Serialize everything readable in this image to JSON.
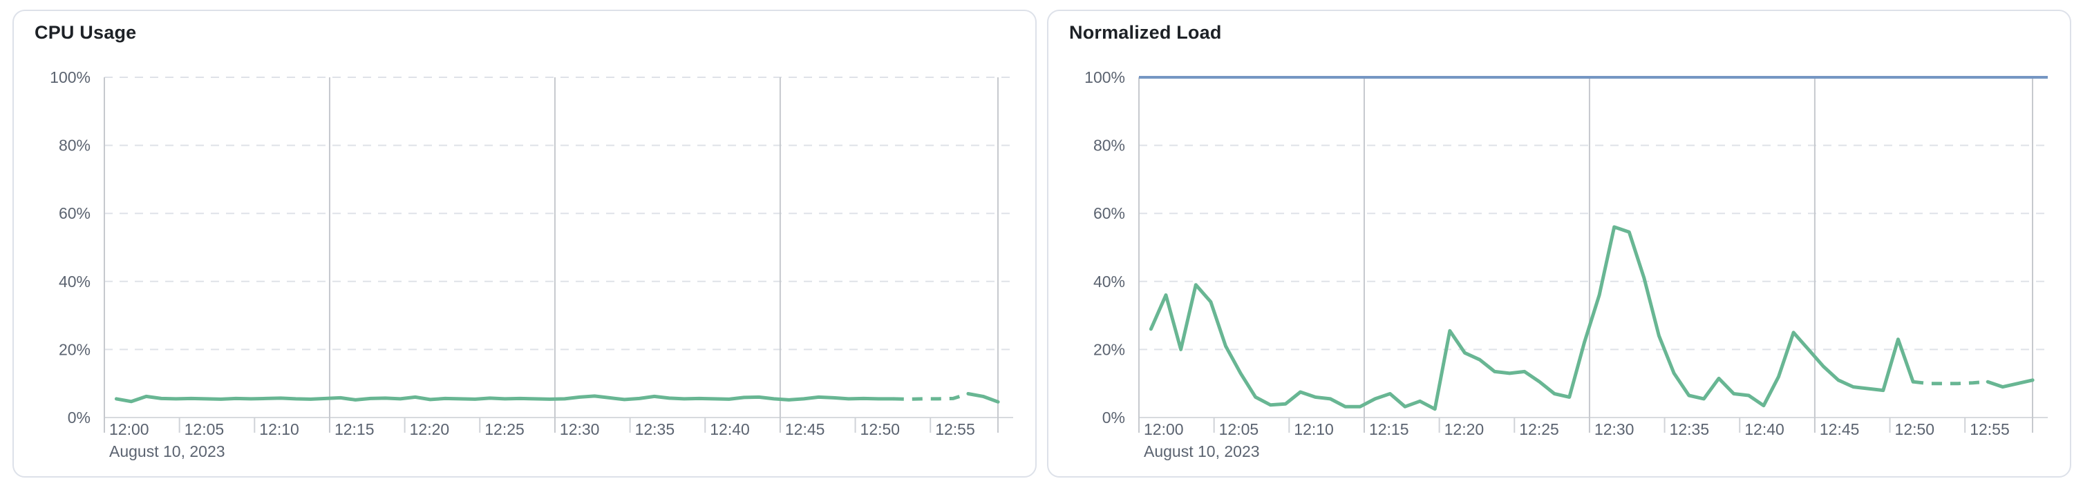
{
  "page": {
    "background": "#ffffff"
  },
  "chart_data": [
    {
      "type": "line",
      "title": "CPU Usage",
      "x_axis": {
        "date_label": "August 10, 2023",
        "start_time": "12:00",
        "tick_labels": [
          "12:00",
          "12:05",
          "12:10",
          "12:15",
          "12:20",
          "12:25",
          "12:30",
          "12:35",
          "12:40",
          "12:45",
          "12:50",
          "12:55"
        ],
        "tick_minutes": [
          0,
          5,
          10,
          15,
          20,
          25,
          30,
          35,
          40,
          45,
          50,
          55
        ],
        "major_gridline_minutes": [
          0,
          15,
          30,
          45,
          59.5
        ],
        "range_minutes": [
          0,
          59.5
        ]
      },
      "y_axis": {
        "tick_labels": [
          "0%",
          "20%",
          "40%",
          "60%",
          "80%",
          "100%"
        ],
        "tick_values": [
          0,
          20,
          40,
          60,
          80,
          100
        ],
        "ylim": [
          0,
          100
        ],
        "gridline_style": "dashed"
      },
      "series": [
        {
          "name": "cpu-usage",
          "color": "#68b693",
          "start_minute": 0.8,
          "minutes_per_point": 0.995,
          "dashed_point_range": [
            52,
            57
          ],
          "values": [
            5.5,
            4.7,
            6.2,
            5.6,
            5.5,
            5.6,
            5.5,
            5.4,
            5.6,
            5.5,
            5.6,
            5.7,
            5.5,
            5.4,
            5.6,
            5.8,
            5.2,
            5.6,
            5.7,
            5.5,
            6.0,
            5.3,
            5.6,
            5.5,
            5.4,
            5.7,
            5.5,
            5.6,
            5.5,
            5.4,
            5.5,
            6.0,
            6.3,
            5.8,
            5.3,
            5.6,
            6.2,
            5.7,
            5.5,
            5.6,
            5.5,
            5.4,
            5.9,
            6.0,
            5.5,
            5.2,
            5.5,
            6.0,
            5.8,
            5.5,
            5.6,
            5.5,
            5.5,
            5.4,
            5.5,
            5.5,
            5.6,
            7.0,
            6.2,
            4.6
          ]
        }
      ],
      "colors": {
        "line": "#68b693",
        "grid_major": "#c6c9ce",
        "grid_dashed": "#dfe2e8",
        "axis_line": "#d7dade",
        "tick": "#d0d3d8",
        "axis_text": "#5b6370",
        "title_text": "#1d2126"
      },
      "legend": false,
      "grid": {
        "horizontal": "dashed",
        "vertical_major_every_minutes": 15
      }
    },
    {
      "type": "line",
      "title": "Normalized Load",
      "x_axis": {
        "date_label": "August 10, 2023",
        "start_time": "12:00",
        "tick_labels": [
          "12:00",
          "12:05",
          "12:10",
          "12:15",
          "12:20",
          "12:25",
          "12:30",
          "12:35",
          "12:40",
          "12:45",
          "12:50",
          "12:55"
        ],
        "tick_minutes": [
          0,
          5,
          10,
          15,
          20,
          25,
          30,
          35,
          40,
          45,
          50,
          55
        ],
        "major_gridline_minutes": [
          0,
          15,
          30,
          45,
          59.5
        ],
        "range_minutes": [
          0,
          59.5
        ]
      },
      "y_axis": {
        "tick_labels": [
          "0%",
          "20%",
          "40%",
          "60%",
          "80%",
          "100%"
        ],
        "tick_values": [
          0,
          20,
          40,
          60,
          80,
          100
        ],
        "ylim": [
          0,
          100
        ],
        "gridline_style": "dashed"
      },
      "series": [
        {
          "name": "normalized-load",
          "color": "#68b693",
          "start_minute": 0.8,
          "minutes_per_point": 0.995,
          "dashed_point_range": [
            51,
            56
          ],
          "values": [
            26,
            36,
            20,
            39,
            34,
            21,
            13,
            6,
            3.7,
            4,
            7.5,
            6,
            5.5,
            3.2,
            3.2,
            5.5,
            7,
            3.2,
            4.8,
            2.5,
            25.5,
            19,
            17,
            13.5,
            13,
            13.5,
            10.5,
            7,
            6,
            22,
            36,
            56,
            54.5,
            41,
            24,
            13,
            6.5,
            5.5,
            11.5,
            7,
            6.5,
            3.5,
            12,
            25,
            20,
            15,
            11,
            9,
            8.5,
            8,
            23,
            10.5,
            10,
            10,
            10,
            10.2,
            10.5,
            9,
            10,
            11
          ]
        },
        {
          "name": "load-limit",
          "color": "#7596c3",
          "constant_value": 100
        }
      ],
      "colors": {
        "line": "#68b693",
        "limit_line": "#7596c3",
        "grid_major": "#c6c9ce",
        "grid_dashed": "#dfe2e8",
        "axis_line": "#d7dade",
        "tick": "#d0d3d8",
        "axis_text": "#5b6370",
        "title_text": "#1d2126"
      },
      "legend": false,
      "grid": {
        "horizontal": "dashed",
        "vertical_major_every_minutes": 15
      }
    }
  ]
}
